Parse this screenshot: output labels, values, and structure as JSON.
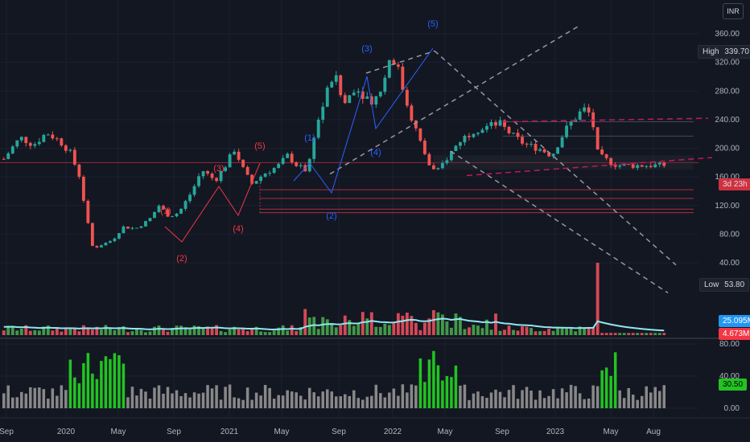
{
  "currency": "INR",
  "price_axis": {
    "labels": [
      "360.00",
      "320.00",
      "280.00",
      "240.00",
      "200.00",
      "160.00",
      "120.00",
      "80.00",
      "40.00"
    ],
    "values": [
      360,
      320,
      280,
      240,
      200,
      160,
      120,
      80,
      40
    ]
  },
  "osc_axis": {
    "labels": [
      "80.00",
      "40.00",
      "0.00"
    ],
    "values": [
      80,
      40,
      0
    ]
  },
  "time_axis": {
    "labels": [
      "Sep",
      "2020",
      "May",
      "Sep",
      "2021",
      "May",
      "Sep",
      "2022",
      "May",
      "Sep",
      "2023",
      "May",
      "Aug"
    ]
  },
  "high_badge": {
    "label": "High",
    "value": "339.70"
  },
  "low_badge": {
    "label": "Low",
    "value": "53.80"
  },
  "price_tag": "3d 23h",
  "volume_ma_tag": "25.095M",
  "volume_tag": "4.673M",
  "oscillator_tag": "30.50",
  "wave_labels": {
    "red": [
      "(1)",
      "(2)",
      "(3)",
      "(4)",
      "(5)"
    ],
    "blue": [
      "(1)",
      "(2)",
      "(3)",
      "(4)",
      "(5)"
    ]
  },
  "colors": {
    "up": "#26a69a",
    "down": "#ef5350",
    "volume_up": "#4caf50",
    "volume_down": "#f7525f",
    "volume_ma": "#8ee8f0",
    "osc_high": "#22c322",
    "osc_low": "#888888",
    "wave_blue": "#2962ff",
    "wave_red": "#f23645",
    "trend_dash": "#9598a1",
    "pink_dash": "#c2185b"
  },
  "chart_data": {
    "type": "candlestick",
    "x_labels": [
      "Sep",
      "2020",
      "May",
      "Sep",
      "2021",
      "May",
      "Sep",
      "2022",
      "May",
      "Sep",
      "2023",
      "May",
      "Aug"
    ],
    "ylim": [
      0,
      370
    ],
    "high": 339.7,
    "low": 53.8,
    "last_close": 176,
    "price_path": [
      [
        0,
        185
      ],
      [
        0.012,
        200
      ],
      [
        0.025,
        215
      ],
      [
        0.045,
        205
      ],
      [
        0.065,
        222
      ],
      [
        0.085,
        210
      ],
      [
        0.1,
        195
      ],
      [
        0.115,
        160
      ],
      [
        0.125,
        105
      ],
      [
        0.135,
        60
      ],
      [
        0.15,
        66
      ],
      [
        0.165,
        72
      ],
      [
        0.18,
        90
      ],
      [
        0.2,
        88
      ],
      [
        0.22,
        100
      ],
      [
        0.235,
        120
      ],
      [
        0.25,
        105
      ],
      [
        0.265,
        110
      ],
      [
        0.285,
        140
      ],
      [
        0.3,
        170
      ],
      [
        0.32,
        155
      ],
      [
        0.335,
        175
      ],
      [
        0.35,
        200
      ],
      [
        0.36,
        175
      ],
      [
        0.375,
        150
      ],
      [
        0.395,
        165
      ],
      [
        0.415,
        175
      ],
      [
        0.43,
        190
      ],
      [
        0.445,
        175
      ],
      [
        0.46,
        168
      ],
      [
        0.47,
        220
      ],
      [
        0.49,
        280
      ],
      [
        0.5,
        305
      ],
      [
        0.515,
        260
      ],
      [
        0.53,
        285
      ],
      [
        0.545,
        275
      ],
      [
        0.56,
        265
      ],
      [
        0.575,
        290
      ],
      [
        0.585,
        330
      ],
      [
        0.595,
        318
      ],
      [
        0.605,
        280
      ],
      [
        0.615,
        250
      ],
      [
        0.63,
        210
      ],
      [
        0.645,
        175
      ],
      [
        0.655,
        165
      ],
      [
        0.67,
        185
      ],
      [
        0.69,
        210
      ],
      [
        0.71,
        225
      ],
      [
        0.73,
        230
      ],
      [
        0.75,
        235
      ],
      [
        0.77,
        218
      ],
      [
        0.79,
        205
      ],
      [
        0.81,
        200
      ],
      [
        0.83,
        190
      ],
      [
        0.85,
        225
      ],
      [
        0.87,
        248
      ],
      [
        0.88,
        255
      ],
      [
        0.89,
        245
      ],
      [
        0.9,
        190
      ],
      [
        0.91,
        185
      ],
      [
        0.92,
        180
      ],
      [
        0.93,
        176
      ]
    ],
    "volume_spike_pos": 0.9,
    "oscillator_high_ranges": [
      [
        0.1,
        0.185
      ],
      [
        0.63,
        0.69
      ],
      [
        0.9,
        0.93
      ]
    ]
  }
}
